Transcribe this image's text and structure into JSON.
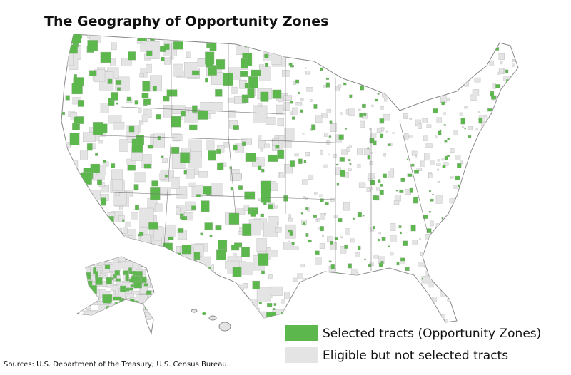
{
  "title": "The Geography of Opportunity Zones",
  "legend": [
    {
      "label": "Selected tracts (Opportunity Zones)",
      "color": "#5cb84c"
    },
    {
      "label": "Eligible but not selected tracts",
      "color": "#e4e4e4"
    }
  ],
  "source": "Sources: U.S. Department of the Treasury; U.S. Census Bureau."
}
